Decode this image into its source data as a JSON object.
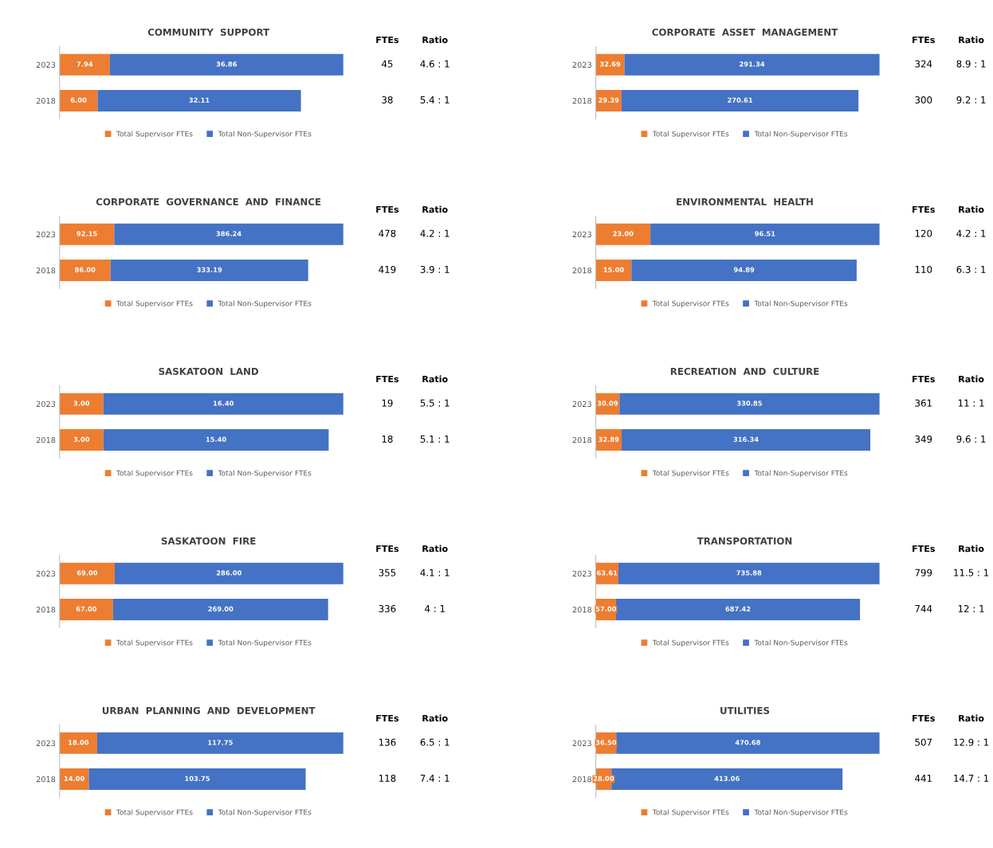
{
  "chart_data": [
    {
      "type": "bar",
      "orientation": "horizontal",
      "stacked": true,
      "tick_labels": "y",
      "legend": "bottom",
      "title": "COMMUNITY  SUPPORT",
      "categories": [
        "2023",
        "2018"
      ],
      "series": [
        {
          "name": "Total Supervisor FTEs",
          "color": "#ed7d31",
          "values": [
            7.94,
            6.0
          ],
          "value_labels": [
            "7.94",
            "6.00"
          ]
        },
        {
          "name": "Total Non-Supervisor FTEs",
          "color": "#4472c4",
          "values": [
            36.86,
            32.11
          ],
          "value_labels": [
            "36.86",
            "32.11"
          ]
        }
      ],
      "annotations": [
        "FTEs",
        "Ratio",
        "45",
        "4.6 : 1",
        "38",
        "5.4 : 1"
      ]
    },
    {
      "type": "bar",
      "orientation": "horizontal",
      "stacked": true,
      "tick_labels": "y",
      "legend": "bottom",
      "title": "CORPORATE  ASSET  MANAGEMENT",
      "categories": [
        "2023",
        "2018"
      ],
      "series": [
        {
          "name": "Total Supervisor FTEs",
          "color": "#ed7d31",
          "values": [
            32.69,
            29.39
          ],
          "value_labels": [
            "32.69",
            "29.39"
          ]
        },
        {
          "name": "Total Non-Supervisor FTEs",
          "color": "#4472c4",
          "values": [
            291.34,
            270.61
          ],
          "value_labels": [
            "291.34",
            "270.61"
          ]
        }
      ],
      "annotations": [
        "FTEs",
        "Ratio",
        "324",
        "8.9 : 1",
        "300",
        "9.2 : 1"
      ]
    },
    {
      "type": "bar",
      "orientation": "horizontal",
      "stacked": true,
      "tick_labels": "y",
      "legend": "bottom",
      "title": "CORPORATE  GOVERNANCE  AND  FINANCE",
      "categories": [
        "2023",
        "2018"
      ],
      "series": [
        {
          "name": "Total Supervisor FTEs",
          "color": "#ed7d31",
          "values": [
            92.15,
            86.0
          ],
          "value_labels": [
            "92.15",
            "86.00"
          ]
        },
        {
          "name": "Total Non-Supervisor FTEs",
          "color": "#4472c4",
          "values": [
            386.24,
            333.19
          ],
          "value_labels": [
            "386.24",
            "333.19"
          ]
        }
      ],
      "annotations": [
        "FTEs",
        "Ratio",
        "478",
        "4.2 : 1",
        "419",
        "3.9 : 1"
      ]
    },
    {
      "type": "bar",
      "orientation": "horizontal",
      "stacked": true,
      "tick_labels": "y",
      "legend": "bottom",
      "title": "ENVIRONMENTAL  HEALTH",
      "categories": [
        "2023",
        "2018"
      ],
      "series": [
        {
          "name": "Total Supervisor FTEs",
          "color": "#ed7d31",
          "values": [
            23.0,
            15.0
          ],
          "value_labels": [
            "23.00",
            "15.00"
          ]
        },
        {
          "name": "Total Non-Supervisor FTEs",
          "color": "#4472c4",
          "values": [
            96.51,
            94.89
          ],
          "value_labels": [
            "96.51",
            "94.89"
          ]
        }
      ],
      "annotations": [
        "FTEs",
        "Ratio",
        "120",
        "4.2 : 1",
        "110",
        "6.3 : 1"
      ]
    },
    {
      "type": "bar",
      "orientation": "horizontal",
      "stacked": true,
      "tick_labels": "y",
      "legend": "bottom",
      "title": "SASKATOON  LAND",
      "categories": [
        "2023",
        "2018"
      ],
      "series": [
        {
          "name": "Total Supervisor FTEs",
          "color": "#ed7d31",
          "values": [
            3.0,
            3.0
          ],
          "value_labels": [
            "3.00",
            "3.00"
          ]
        },
        {
          "name": "Total Non-Supervisor FTEs",
          "color": "#4472c4",
          "values": [
            16.4,
            15.4
          ],
          "value_labels": [
            "16.40",
            "15.40"
          ]
        }
      ],
      "annotations": [
        "FTEs",
        "Ratio",
        "19",
        "5.5 : 1",
        "18",
        "5.1 : 1"
      ]
    },
    {
      "type": "bar",
      "orientation": "horizontal",
      "stacked": true,
      "tick_labels": "y",
      "legend": "bottom",
      "title": "RECREATION  AND  CULTURE",
      "categories": [
        "2023",
        "2018"
      ],
      "series": [
        {
          "name": "Total Supervisor FTEs",
          "color": "#ed7d31",
          "values": [
            30.09,
            32.89
          ],
          "value_labels": [
            "30.09",
            "32.89"
          ]
        },
        {
          "name": "Total Non-Supervisor FTEs",
          "color": "#4472c4",
          "values": [
            330.85,
            316.34
          ],
          "value_labels": [
            "330.85",
            "316.34"
          ]
        }
      ],
      "annotations": [
        "FTEs",
        "Ratio",
        "361",
        "11 : 1",
        "349",
        "9.6 : 1"
      ]
    },
    {
      "type": "bar",
      "orientation": "horizontal",
      "stacked": true,
      "tick_labels": "y",
      "legend": "bottom",
      "title": "SASKATOON  FIRE",
      "categories": [
        "2023",
        "2018"
      ],
      "series": [
        {
          "name": "Total Supervisor FTEs",
          "color": "#ed7d31",
          "values": [
            69.0,
            67.0
          ],
          "value_labels": [
            "69.00",
            "67.00"
          ]
        },
        {
          "name": "Total Non-Supervisor FTEs",
          "color": "#4472c4",
          "values": [
            286.0,
            269.0
          ],
          "value_labels": [
            "286.00",
            "269.00"
          ]
        }
      ],
      "annotations": [
        "FTEs",
        "Ratio",
        "355",
        "4.1 : 1",
        "336",
        "4 : 1"
      ]
    },
    {
      "type": "bar",
      "orientation": "horizontal",
      "stacked": true,
      "tick_labels": "y",
      "legend": "bottom",
      "title": "TRANSPORTATION",
      "categories": [
        "2023",
        "2018"
      ],
      "series": [
        {
          "name": "Total Supervisor FTEs",
          "color": "#ed7d31",
          "values": [
            63.61,
            57.0
          ],
          "value_labels": [
            "63.61",
            "57.00"
          ]
        },
        {
          "name": "Total Non-Supervisor FTEs",
          "color": "#4472c4",
          "values": [
            735.88,
            687.42
          ],
          "value_labels": [
            "735.88",
            "687.42"
          ]
        }
      ],
      "annotations": [
        "FTEs",
        "Ratio",
        "799",
        "11.5 : 1",
        "744",
        "12 : 1"
      ]
    },
    {
      "type": "bar",
      "orientation": "horizontal",
      "stacked": true,
      "tick_labels": "y",
      "legend": "bottom",
      "title": "URBAN  PLANNING  AND  DEVELOPMENT",
      "categories": [
        "2023",
        "2018"
      ],
      "series": [
        {
          "name": "Total Supervisor FTEs",
          "color": "#ed7d31",
          "values": [
            18.0,
            14.0
          ],
          "value_labels": [
            "18.00",
            "14.00"
          ]
        },
        {
          "name": "Total Non-Supervisor FTEs",
          "color": "#4472c4",
          "values": [
            117.75,
            103.75
          ],
          "value_labels": [
            "117.75",
            "103.75"
          ]
        }
      ],
      "annotations": [
        "FTEs",
        "Ratio",
        "136",
        "6.5 : 1",
        "118",
        "7.4 : 1"
      ]
    },
    {
      "type": "bar",
      "orientation": "horizontal",
      "stacked": true,
      "tick_labels": "y",
      "legend": "bottom",
      "title": "UTILITIES",
      "categories": [
        "2023",
        "2018"
      ],
      "series": [
        {
          "name": "Total Supervisor FTEs",
          "color": "#ed7d31",
          "values": [
            36.5,
            28.0
          ],
          "value_labels": [
            "36.50",
            "28.00"
          ]
        },
        {
          "name": "Total Non-Supervisor FTEs",
          "color": "#4472c4",
          "values": [
            470.68,
            413.06
          ],
          "value_labels": [
            "470.68",
            "413.06"
          ]
        }
      ],
      "annotations": [
        "FTEs",
        "Ratio",
        "507",
        "12.9 : 1",
        "441",
        "14.7 : 1"
      ]
    }
  ]
}
